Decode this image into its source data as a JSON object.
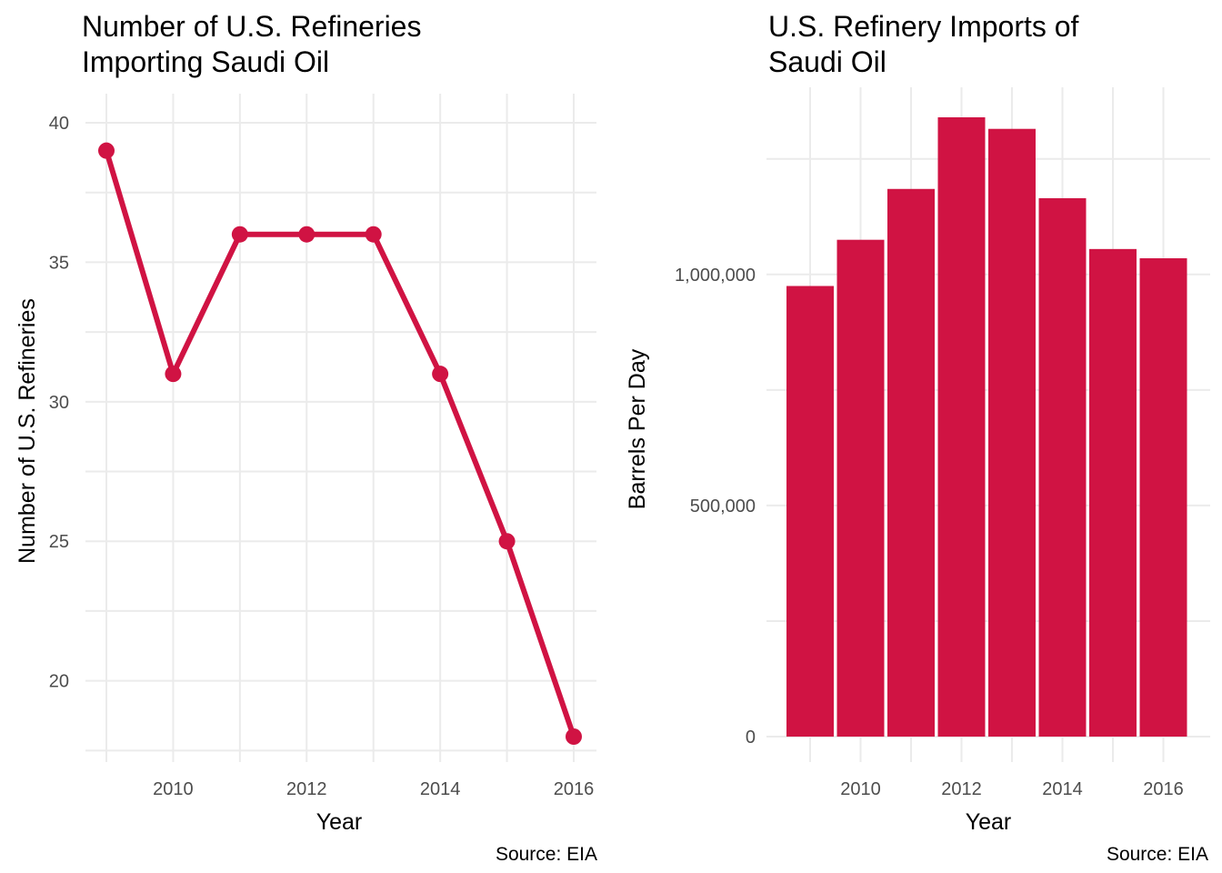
{
  "chart_data": [
    {
      "type": "line",
      "title_lines": [
        "Number of U.S. Refineries",
        "Importing Saudi Oil"
      ],
      "xlabel": "Year",
      "ylabel": "Number of U.S. Refineries",
      "caption": "Source: EIA",
      "x": [
        2009,
        2010,
        2011,
        2012,
        2013,
        2014,
        2015,
        2016
      ],
      "y": [
        39,
        31,
        36,
        36,
        36,
        31,
        25,
        18
      ],
      "xticks": [
        2010,
        2012,
        2014,
        2016
      ],
      "yticks": [
        20,
        25,
        30,
        35,
        40
      ],
      "xlim": [
        2009,
        2016
      ],
      "ylim": [
        18,
        40
      ],
      "color": "#d01343",
      "grid": true,
      "legend": "none"
    },
    {
      "type": "bar",
      "title_lines": [
        "U.S. Refinery Imports of",
        "Saudi Oil"
      ],
      "xlabel": "Year",
      "ylabel": "Barrels Per Day",
      "caption": "Source: EIA",
      "x": [
        2009,
        2010,
        2011,
        2012,
        2013,
        2014,
        2015,
        2016
      ],
      "y": [
        975000,
        1075000,
        1185000,
        1340000,
        1315000,
        1165000,
        1055000,
        1035000
      ],
      "xticks": [
        2010,
        2012,
        2014,
        2016
      ],
      "yticks": [
        0,
        500000,
        1000000
      ],
      "ytick_labels": [
        "0",
        "500,000",
        "1,000,000"
      ],
      "ylim": [
        0,
        1340000
      ],
      "color": "#d01343",
      "grid": true,
      "legend": "none"
    }
  ]
}
